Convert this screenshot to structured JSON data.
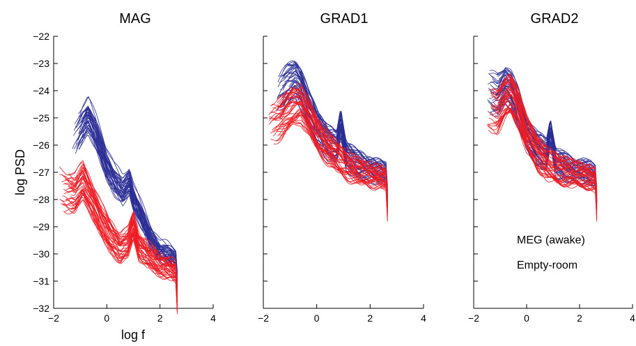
{
  "figure": {
    "ylabel": "log PSD",
    "xlabel": "log f",
    "xlim": [
      -2,
      4
    ],
    "ylim": [
      -32,
      -22
    ],
    "xticks": [
      "−2",
      "0",
      "2",
      "4"
    ],
    "yticks": [
      "−22",
      "−23",
      "−24",
      "−25",
      "−26",
      "−27",
      "−28",
      "−29",
      "−30",
      "−31",
      "−32"
    ],
    "legend": {
      "placement": "lower-right of third panel",
      "entries": [
        {
          "label": "MEG (awake)",
          "color": "#2b2f95"
        },
        {
          "label": "Empty-room",
          "color": "#ee1c24"
        }
      ]
    }
  },
  "chart_data": [
    {
      "type": "line",
      "title": "MAG",
      "xlabel": "log f",
      "ylabel": "log PSD",
      "xlim": [
        -2,
        4
      ],
      "ylim": [
        -32,
        -22
      ],
      "series": [
        {
          "name": "MEG (awake)",
          "color": "#2b2f95",
          "x": [
            -1.3,
            -0.9,
            -0.7,
            -0.4,
            0.0,
            0.3,
            0.6,
            0.85,
            1.0,
            1.3,
            1.6,
            2.0,
            2.3,
            2.65
          ],
          "y": [
            -26.0,
            -25.2,
            -24.9,
            -25.6,
            -26.7,
            -27.3,
            -27.7,
            -27.3,
            -27.9,
            -28.6,
            -29.3,
            -29.9,
            -30.0,
            -30.2
          ]
        },
        {
          "name": "Empty-room",
          "color": "#ee1c24",
          "x": [
            -1.8,
            -1.2,
            -0.9,
            -0.6,
            -0.2,
            0.1,
            0.5,
            0.8,
            1.0,
            1.2,
            1.5,
            2.0,
            2.3,
            2.65
          ],
          "y": [
            -27.6,
            -27.8,
            -27.3,
            -27.9,
            -28.8,
            -29.3,
            -29.8,
            -29.6,
            -28.9,
            -29.7,
            -30.0,
            -30.4,
            -30.5,
            -30.7
          ]
        }
      ]
    },
    {
      "type": "line",
      "title": "GRAD1",
      "xlabel": "",
      "ylabel": "",
      "xlim": [
        -2,
        4
      ],
      "ylim": [
        -32,
        -22
      ],
      "series": [
        {
          "name": "MEG (awake)",
          "color": "#2b2f95",
          "x": [
            -1.5,
            -1.1,
            -0.8,
            -0.6,
            -0.3,
            0.0,
            0.4,
            0.75,
            0.9,
            1.1,
            1.5,
            2.0,
            2.4,
            2.65
          ],
          "y": [
            -24.3,
            -23.8,
            -23.6,
            -23.9,
            -24.7,
            -25.3,
            -25.9,
            -26.1,
            -25.2,
            -26.4,
            -26.7,
            -26.9,
            -27.0,
            -27.1
          ]
        },
        {
          "name": "Empty-room",
          "color": "#ee1c24",
          "x": [
            -1.8,
            -1.3,
            -0.9,
            -0.6,
            -0.3,
            0.0,
            0.4,
            0.8,
            1.2,
            1.6,
            2.0,
            2.4,
            2.65
          ],
          "y": [
            -25.2,
            -25.0,
            -24.6,
            -24.5,
            -25.0,
            -25.6,
            -26.1,
            -26.5,
            -26.8,
            -27.0,
            -27.1,
            -27.2,
            -27.3
          ]
        }
      ]
    },
    {
      "type": "line",
      "title": "GRAD2",
      "xlabel": "",
      "ylabel": "",
      "xlim": [
        -2,
        4
      ],
      "ylim": [
        -32,
        -22
      ],
      "series": [
        {
          "name": "MEG (awake)",
          "color": "#2b2f95",
          "x": [
            -1.5,
            -1.1,
            -0.8,
            -0.6,
            -0.3,
            0.0,
            0.4,
            0.75,
            0.9,
            1.1,
            1.5,
            2.0,
            2.4,
            2.65
          ],
          "y": [
            -24.0,
            -24.1,
            -23.7,
            -23.9,
            -24.6,
            -25.5,
            -26.1,
            -26.3,
            -25.4,
            -26.6,
            -26.8,
            -26.9,
            -27.0,
            -27.1
          ]
        },
        {
          "name": "Empty-room",
          "color": "#ee1c24",
          "x": [
            -1.5,
            -1.1,
            -0.8,
            -0.6,
            -0.3,
            0.0,
            0.4,
            0.8,
            1.2,
            1.6,
            2.0,
            2.4,
            2.65
          ],
          "y": [
            -24.6,
            -24.8,
            -24.3,
            -24.1,
            -24.7,
            -25.6,
            -26.3,
            -26.7,
            -26.9,
            -27.0,
            -27.1,
            -27.2,
            -27.3
          ]
        }
      ]
    }
  ]
}
